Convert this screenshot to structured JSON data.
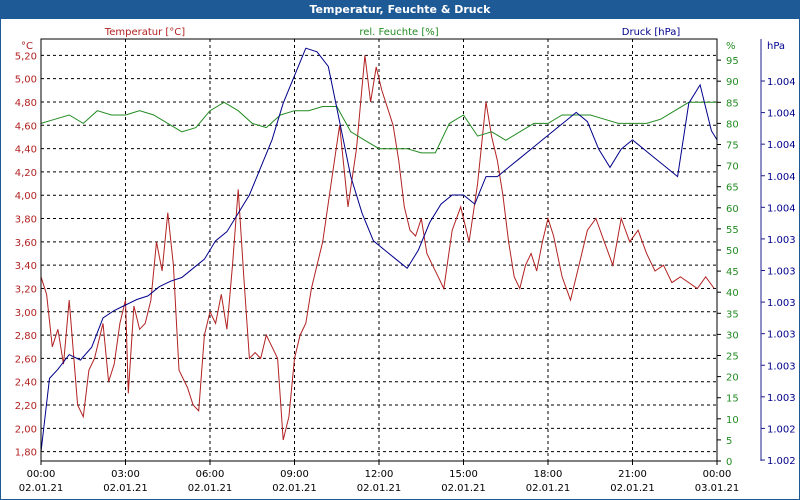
{
  "window": {
    "title": "Temperatur, Feuchte & Druck"
  },
  "chart_data": {
    "type": "line",
    "title": "Temperatur, Feuchte & Druck",
    "grid": true,
    "colors": {
      "temperature": "#b22222",
      "humidity": "#228b22",
      "pressure": "#00008b"
    },
    "series_headers": {
      "temperature": "Temperatur [°C]",
      "humidity": "rel. Feuchte [%]",
      "pressure": "Druck [hPa]"
    },
    "x_ticks": [
      {
        "time": "00:00",
        "date": "02.01.21"
      },
      {
        "time": "03:00",
        "date": "02.01.21"
      },
      {
        "time": "06:00",
        "date": "02.01.21"
      },
      {
        "time": "09:00",
        "date": "02.01.21"
      },
      {
        "time": "12:00",
        "date": "02.01.21"
      },
      {
        "time": "15:00",
        "date": "02.01.21"
      },
      {
        "time": "18:00",
        "date": "02.01.21"
      },
      {
        "time": "21:00",
        "date": "02.01.21"
      },
      {
        "time": "00:00",
        "date": "03.01.21"
      }
    ],
    "x_range_hours": [
      0,
      24
    ],
    "axes": {
      "temperature": {
        "unit": "°C",
        "range": [
          1.72,
          5.34
        ],
        "ticks": [
          "5,20",
          "5,00",
          "4,80",
          "4,60",
          "4,40",
          "4,20",
          "4,00",
          "3,80",
          "3,60",
          "3,40",
          "3,20",
          "3,00",
          "2,80",
          "2,60",
          "2,40",
          "2,20",
          "2,00",
          "1,80"
        ]
      },
      "humidity": {
        "unit": "%",
        "range": [
          0,
          100
        ],
        "ticks": [
          "95",
          "90",
          "85",
          "80",
          "75",
          "70",
          "65",
          "60",
          "55",
          "50",
          "45",
          "40",
          "35",
          "30",
          "25",
          "20",
          "15",
          "10",
          "5",
          "0"
        ]
      },
      "pressure": {
        "unit": "hPa",
        "range": [
          1002.0,
          1004.3
        ],
        "ticks": [
          "1.004",
          "1.004",
          "1.004",
          "1.004",
          "1.004",
          "1.003",
          "1.003",
          "1.003",
          "1.003",
          "1.003",
          "1.003",
          "1.002",
          "1.002"
        ]
      }
    },
    "series": [
      {
        "key": "temperature",
        "axis": "temperature",
        "hours": [
          0,
          0.2,
          0.4,
          0.6,
          0.8,
          1.0,
          1.3,
          1.5,
          1.7,
          1.9,
          2.2,
          2.4,
          2.6,
          2.8,
          3.0,
          3.1,
          3.3,
          3.5,
          3.7,
          3.9,
          4.1,
          4.3,
          4.5,
          4.7,
          4.9,
          5.0,
          5.2,
          5.4,
          5.6,
          5.8,
          6.0,
          6.2,
          6.4,
          6.6,
          6.8,
          7.0,
          7.2,
          7.4,
          7.6,
          7.8,
          8.0,
          8.2,
          8.4,
          8.6,
          8.8,
          9.0,
          9.2,
          9.4,
          9.6,
          9.8,
          10.0,
          10.3,
          10.6,
          10.9,
          11.2,
          11.5,
          11.7,
          11.9,
          12.1,
          12.3,
          12.5,
          12.7,
          12.9,
          13.1,
          13.3,
          13.5,
          13.7,
          13.9,
          14.1,
          14.3,
          14.6,
          14.9,
          15.2,
          15.5,
          15.8,
          16.0,
          16.2,
          16.4,
          16.6,
          16.8,
          17.0,
          17.2,
          17.4,
          17.6,
          17.8,
          18.0,
          18.2,
          18.5,
          18.8,
          19.1,
          19.4,
          19.7,
          20.0,
          20.3,
          20.6,
          20.9,
          21.2,
          21.5,
          21.8,
          22.1,
          22.4,
          22.7,
          23.0,
          23.3,
          23.6,
          23.9
        ],
        "values": [
          3.3,
          3.15,
          2.7,
          2.85,
          2.55,
          3.1,
          2.2,
          2.1,
          2.5,
          2.6,
          2.9,
          2.4,
          2.55,
          2.9,
          3.1,
          2.3,
          3.05,
          2.85,
          2.9,
          3.1,
          3.6,
          3.35,
          3.85,
          3.4,
          2.5,
          2.45,
          2.35,
          2.2,
          2.15,
          2.8,
          3.0,
          2.9,
          3.15,
          2.85,
          3.4,
          4.05,
          3.3,
          2.6,
          2.65,
          2.6,
          2.8,
          2.7,
          2.6,
          1.9,
          2.1,
          2.6,
          2.8,
          2.9,
          3.2,
          3.4,
          3.6,
          4.1,
          4.6,
          3.9,
          4.4,
          5.2,
          4.8,
          5.1,
          4.9,
          4.75,
          4.6,
          4.3,
          3.9,
          3.7,
          3.65,
          3.8,
          3.5,
          3.4,
          3.3,
          3.2,
          3.7,
          3.9,
          3.6,
          4.1,
          4.8,
          4.5,
          4.3,
          4.0,
          3.6,
          3.3,
          3.2,
          3.4,
          3.5,
          3.35,
          3.6,
          3.8,
          3.65,
          3.3,
          3.1,
          3.4,
          3.7,
          3.8,
          3.6,
          3.4,
          3.8,
          3.6,
          3.7,
          3.5,
          3.35,
          3.4,
          3.25,
          3.3,
          3.25,
          3.2,
          3.3,
          3.2
        ]
      },
      {
        "key": "humidity",
        "axis": "humidity",
        "hours": [
          0,
          0.5,
          1.0,
          1.5,
          2.0,
          2.5,
          3.0,
          3.5,
          4.0,
          4.5,
          5.0,
          5.5,
          6.0,
          6.5,
          7.0,
          7.5,
          8.0,
          8.5,
          9.0,
          9.5,
          10.0,
          10.5,
          11.0,
          11.5,
          12.0,
          12.5,
          13.0,
          13.5,
          14.0,
          14.5,
          15.0,
          15.5,
          16.0,
          16.5,
          17.0,
          17.5,
          18.0,
          18.5,
          19.0,
          19.5,
          20.0,
          20.5,
          21.0,
          21.5,
          22.0,
          22.5,
          23.0,
          23.5,
          24.0
        ],
        "values": [
          80,
          81,
          82,
          80,
          83,
          82,
          82,
          83,
          82,
          80,
          78,
          79,
          83,
          85,
          83,
          80,
          79,
          82,
          83,
          83,
          84,
          84,
          78,
          76,
          74,
          74,
          74,
          73,
          73,
          80,
          82,
          77,
          78,
          76,
          78,
          80,
          80,
          82,
          82,
          82,
          81,
          80,
          80,
          80,
          81,
          83,
          85,
          85,
          85
        ]
      },
      {
        "key": "pressure",
        "axis": "pressure",
        "hours": [
          0,
          0.3,
          0.6,
          1.0,
          1.4,
          1.8,
          2.2,
          2.6,
          3.0,
          3.4,
          3.8,
          4.2,
          4.6,
          5.0,
          5.4,
          5.8,
          6.2,
          6.6,
          7.0,
          7.4,
          7.8,
          8.2,
          8.6,
          9.0,
          9.4,
          9.8,
          10.2,
          10.6,
          11.0,
          11.4,
          11.8,
          12.2,
          12.6,
          13.0,
          13.4,
          13.8,
          14.2,
          14.6,
          15.0,
          15.4,
          15.8,
          16.2,
          16.6,
          17.0,
          17.4,
          17.8,
          18.2,
          18.6,
          19.0,
          19.4,
          19.8,
          20.2,
          20.6,
          21.0,
          21.4,
          21.8,
          22.2,
          22.6,
          23.0,
          23.4,
          23.8,
          24.0
        ],
        "values": [
          1002.05,
          1002.45,
          1002.5,
          1002.58,
          1002.55,
          1002.62,
          1002.78,
          1002.82,
          1002.85,
          1002.88,
          1002.9,
          1002.95,
          1002.98,
          1003.0,
          1003.05,
          1003.1,
          1003.2,
          1003.25,
          1003.35,
          1003.45,
          1003.6,
          1003.75,
          1003.95,
          1004.1,
          1004.25,
          1004.23,
          1004.15,
          1003.85,
          1003.55,
          1003.35,
          1003.2,
          1003.15,
          1003.1,
          1003.05,
          1003.15,
          1003.3,
          1003.4,
          1003.45,
          1003.45,
          1003.4,
          1003.55,
          1003.55,
          1003.6,
          1003.65,
          1003.7,
          1003.75,
          1003.8,
          1003.85,
          1003.9,
          1003.85,
          1003.7,
          1003.6,
          1003.7,
          1003.75,
          1003.7,
          1003.65,
          1003.6,
          1003.55,
          1003.95,
          1004.05,
          1003.8,
          1003.75
        ]
      }
    ]
  }
}
